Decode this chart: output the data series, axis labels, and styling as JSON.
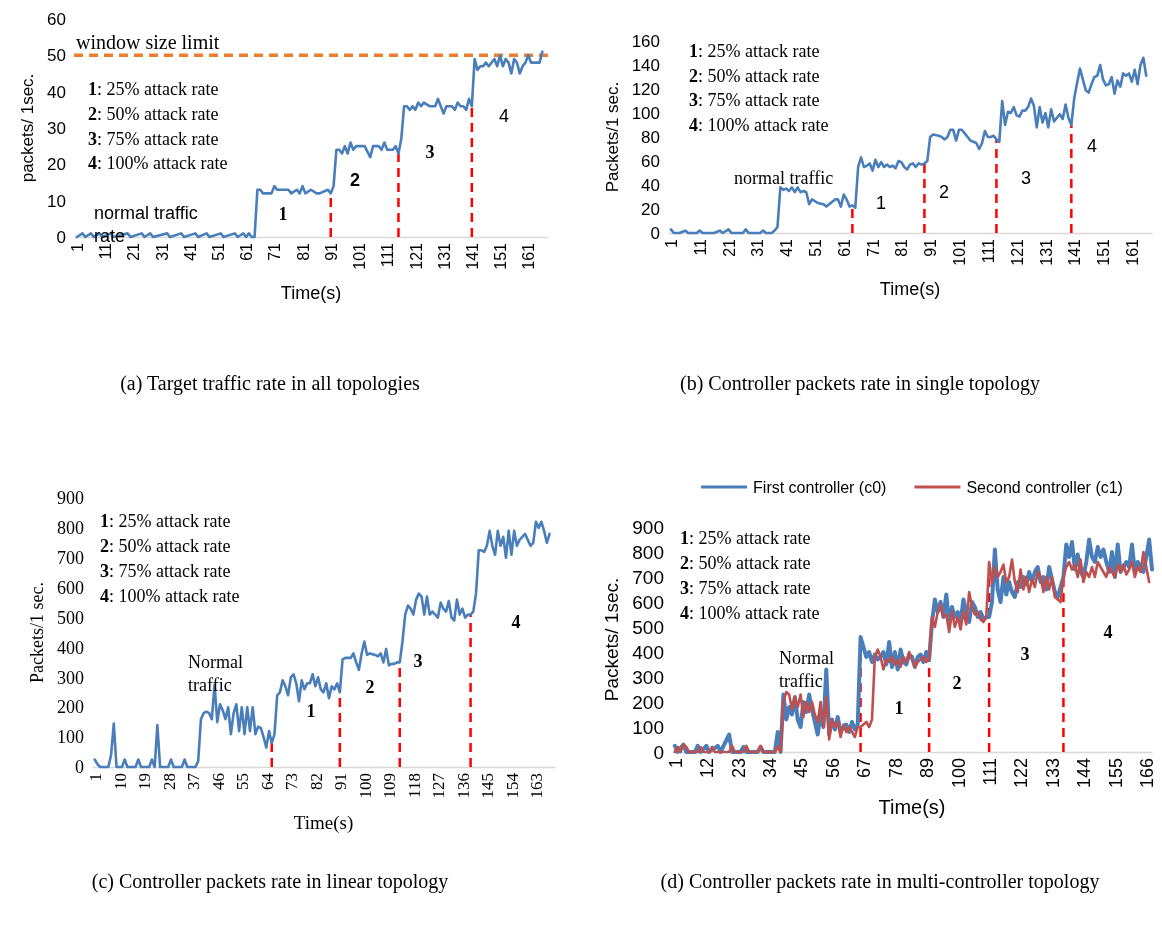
{
  "chart_data": [
    {
      "type": "line",
      "title": "(a) Target traffic rate in all topologies",
      "xlabel": "Time(s)",
      "ylabel": "packets/ 1sec.",
      "xlim": [
        0,
        168
      ],
      "xticks": [
        1,
        11,
        21,
        31,
        41,
        51,
        61,
        71,
        81,
        91,
        101,
        111,
        121,
        131,
        141,
        151,
        161
      ],
      "ylim": [
        0,
        60
      ],
      "yticks": [
        0,
        10,
        20,
        30,
        40,
        50,
        60
      ],
      "series": [
        {
          "color": "#4a7ebb",
          "x": [
            1,
            3,
            4,
            6,
            7,
            9,
            10,
            13,
            14,
            19,
            20,
            24,
            25,
            27,
            28,
            33,
            34,
            38,
            39,
            43,
            44,
            47,
            48,
            52,
            53,
            57,
            58,
            60,
            61,
            62,
            63,
            64,
            65,
            66,
            67,
            70,
            71,
            72,
            76,
            77,
            79,
            80,
            81,
            82,
            84,
            86,
            87,
            90,
            91,
            92,
            93,
            94,
            95,
            96,
            97,
            98,
            99,
            100,
            103,
            105,
            106,
            108,
            109,
            110,
            111,
            113,
            114,
            115,
            116,
            117,
            118,
            119,
            120,
            121,
            122,
            123,
            124,
            126,
            128,
            129,
            130,
            131,
            132,
            134,
            135,
            136,
            137,
            138,
            139,
            140,
            141,
            142,
            143,
            144,
            145,
            146,
            147,
            148,
            149,
            150,
            151,
            152,
            153,
            154,
            155,
            156,
            157,
            158,
            159,
            160,
            161,
            162,
            163,
            164,
            165,
            166
          ],
          "values": [
            0,
            1,
            0,
            1,
            0,
            1,
            0,
            1,
            0,
            1,
            0,
            1,
            0,
            1,
            0,
            1,
            0,
            1,
            0,
            1,
            0,
            1,
            0,
            1,
            0,
            1,
            0,
            1,
            0,
            1,
            0,
            0,
            13,
            13,
            12,
            12,
            14,
            13,
            13,
            12,
            13,
            12,
            14,
            12,
            13,
            12,
            12,
            13,
            12,
            14,
            24,
            24,
            23,
            25,
            23,
            26,
            24,
            25,
            25,
            22,
            25,
            25,
            24,
            26,
            24,
            24,
            25,
            23,
            27,
            36,
            36,
            35,
            36,
            35,
            37,
            36,
            37,
            36,
            36,
            38,
            36,
            34,
            36,
            36,
            35,
            37,
            36,
            36,
            35,
            38,
            36,
            49,
            46,
            47,
            47,
            48,
            47,
            48,
            49,
            47,
            50,
            47,
            49,
            48,
            45,
            49,
            48,
            45,
            47,
            48,
            50,
            48,
            48,
            48,
            48,
            51
          ]
        }
      ],
      "ref_lines": [
        {
          "axis": "y",
          "value": 50,
          "label": "window size limit",
          "color": "#ed7d31",
          "line_style": "dashed"
        },
        {
          "axis": "x",
          "value": 91,
          "color": "#ff0000",
          "line_style": "dashed"
        },
        {
          "axis": "x",
          "value": 115,
          "color": "#ff0000",
          "line_style": "dashed"
        },
        {
          "axis": "x",
          "value": 141,
          "color": "#ff0000",
          "line_style": "dashed"
        }
      ],
      "annotations": [
        "1: 25% attack rate",
        "2: 50% attack rate",
        "3: 75% attack rate",
        "4: 100% attack rate",
        "normal traffic rate",
        "1",
        "2",
        "3",
        "4"
      ]
    },
    {
      "type": "line",
      "title": "(b) Controller packets rate in single topology",
      "xlabel": "Time(s)",
      "ylabel": "Packets/1 sec.",
      "xlim": [
        0,
        168
      ],
      "xticks": [
        1,
        11,
        21,
        31,
        41,
        51,
        61,
        71,
        81,
        91,
        101,
        111,
        121,
        131,
        141,
        151,
        161
      ],
      "ylim": [
        0,
        160
      ],
      "yticks": [
        0,
        20,
        40,
        60,
        80,
        100,
        120,
        140,
        160
      ],
      "series": [
        {
          "color": "#4a7ebb",
          "x": [
            1,
            2,
            4,
            6,
            7,
            10,
            11,
            12,
            16,
            18,
            19,
            21,
            22,
            26,
            27,
            28,
            32,
            33,
            34,
            36,
            37,
            38,
            39,
            40,
            41,
            42,
            43,
            44,
            45,
            46,
            47,
            48,
            49,
            50,
            52,
            54,
            55,
            58,
            59,
            60,
            61,
            62,
            63,
            64,
            65,
            66,
            67,
            68,
            69,
            70,
            71,
            72,
            73,
            74,
            75,
            76,
            77,
            78,
            79,
            80,
            81,
            82,
            83,
            84,
            85,
            86,
            87,
            88,
            89,
            90,
            91,
            92,
            94,
            95,
            96,
            97,
            98,
            99,
            100,
            101,
            102,
            103,
            104,
            105,
            106,
            107,
            108,
            109,
            110,
            111,
            112,
            113,
            114,
            115,
            116,
            117,
            118,
            119,
            120,
            121,
            122,
            123,
            124,
            125,
            126,
            127,
            128,
            129,
            130,
            131,
            132,
            133,
            134,
            135,
            136,
            137,
            138,
            139,
            140,
            141,
            142,
            143,
            144,
            145,
            146,
            147,
            148,
            149,
            150,
            151,
            152,
            153,
            154,
            155,
            156,
            157,
            158,
            159,
            160,
            161,
            162,
            163,
            164,
            165,
            166
          ],
          "values": [
            3,
            0,
            0,
            2,
            0,
            0,
            2,
            0,
            0,
            2,
            0,
            3,
            0,
            0,
            3,
            0,
            0,
            2,
            0,
            0,
            2,
            5,
            38,
            36,
            37,
            35,
            38,
            34,
            38,
            34,
            35,
            34,
            24,
            28,
            25,
            24,
            22,
            28,
            28,
            22,
            32,
            28,
            22,
            23,
            21,
            55,
            63,
            55,
            56,
            58,
            52,
            61,
            55,
            59,
            55,
            57,
            55,
            56,
            54,
            60,
            59,
            55,
            53,
            57,
            58,
            55,
            58,
            57,
            58,
            60,
            80,
            82,
            81,
            80,
            78,
            80,
            86,
            86,
            77,
            86,
            86,
            83,
            80,
            77,
            76,
            75,
            70,
            75,
            85,
            80,
            80,
            81,
            78,
            76,
            110,
            90,
            101,
            100,
            105,
            98,
            97,
            102,
            102,
            105,
            112,
            106,
            88,
            105,
            92,
            100,
            88,
            103,
            93,
            96,
            99,
            95,
            107,
            96,
            90,
            112,
            125,
            137,
            128,
            119,
            117,
            124,
            130,
            131,
            140,
            128,
            123,
            124,
            130,
            116,
            127,
            122,
            133,
            131,
            133,
            126,
            136,
            124,
            140,
            146,
            131
          ]
        }
      ],
      "ref_lines": [
        {
          "axis": "x",
          "value": 64,
          "color": "#ff0000",
          "line_style": "dashed"
        },
        {
          "axis": "x",
          "value": 89,
          "color": "#ff0000",
          "line_style": "dashed"
        },
        {
          "axis": "x",
          "value": 114,
          "color": "#ff0000",
          "line_style": "dashed"
        },
        {
          "axis": "x",
          "value": 140,
          "color": "#ff0000",
          "line_style": "dashed"
        }
      ],
      "annotations": [
        "1: 25% attack rate",
        "2: 50% attack rate",
        "3: 75% attack rate",
        "4: 100% attack rate",
        "normal traffic",
        "1",
        "2",
        "3",
        "4"
      ]
    },
    {
      "type": "line",
      "title": "(c) Controller packets rate in linear topology",
      "xlabel": "Time(s)",
      "ylabel": "Packets/1 sec.",
      "xlim": [
        0,
        170
      ],
      "xticks": [
        1,
        10,
        19,
        28,
        37,
        46,
        55,
        64,
        73,
        82,
        91,
        100,
        109,
        118,
        127,
        136,
        145,
        154,
        163
      ],
      "ylim": [
        0,
        900
      ],
      "yticks": [
        0,
        100,
        200,
        300,
        400,
        500,
        600,
        700,
        800,
        900
      ],
      "series": [
        {
          "color": "#4a7ebb",
          "x": [
            1,
            2,
            3,
            6,
            7,
            8,
            9,
            11,
            12,
            13,
            16,
            17,
            18,
            21,
            22,
            23,
            24,
            25,
            28,
            29,
            30,
            33,
            34,
            35,
            38,
            39,
            40,
            41,
            42,
            43,
            44,
            45,
            46,
            47,
            48,
            49,
            50,
            51,
            52,
            53,
            54,
            55,
            56,
            57,
            58,
            59,
            60,
            61,
            62,
            63,
            64,
            65,
            66,
            67,
            68,
            69,
            70,
            71,
            72,
            73,
            74,
            75,
            76,
            77,
            78,
            79,
            80,
            81,
            82,
            83,
            84,
            85,
            86,
            87,
            88,
            89,
            90,
            91,
            92,
            93,
            95,
            96,
            97,
            98,
            99,
            100,
            101,
            102,
            104,
            105,
            106,
            107,
            108,
            109,
            110,
            111,
            112,
            113,
            114,
            115,
            116,
            117,
            118,
            119,
            120,
            121,
            122,
            123,
            124,
            125,
            126,
            127,
            128,
            129,
            130,
            131,
            132,
            133,
            134,
            135,
            136,
            137,
            138,
            139,
            140,
            141,
            142,
            143,
            144,
            145,
            146,
            147,
            148,
            149,
            150,
            151,
            152,
            153,
            154,
            155,
            156,
            157,
            158,
            159,
            160,
            161,
            162,
            163,
            164,
            165,
            166,
            167,
            168
          ],
          "values": [
            25,
            10,
            0,
            0,
            40,
            145,
            0,
            0,
            25,
            0,
            0,
            25,
            0,
            0,
            25,
            0,
            140,
            0,
            0,
            25,
            0,
            0,
            25,
            0,
            0,
            20,
            160,
            180,
            185,
            180,
            160,
            275,
            150,
            210,
            190,
            160,
            200,
            110,
            180,
            210,
            120,
            200,
            110,
            200,
            120,
            200,
            110,
            135,
            130,
            100,
            65,
            120,
            80,
            110,
            240,
            250,
            290,
            270,
            240,
            300,
            310,
            280,
            220,
            290,
            260,
            280,
            280,
            310,
            270,
            300,
            260,
            250,
            280,
            230,
            270,
            260,
            280,
            250,
            360,
            365,
            365,
            380,
            350,
            325,
            380,
            420,
            375,
            380,
            375,
            370,
            380,
            350,
            395,
            340,
            345,
            345,
            350,
            350,
            420,
            510,
            540,
            530,
            510,
            560,
            580,
            570,
            510,
            570,
            510,
            520,
            510,
            500,
            550,
            530,
            520,
            555,
            500,
            490,
            560,
            510,
            530,
            500,
            510,
            510,
            520,
            580,
            725,
            725,
            720,
            740,
            790,
            740,
            710,
            790,
            740,
            770,
            700,
            790,
            710,
            790,
            740,
            760,
            770,
            780,
            760,
            740,
            750,
            820,
            800,
            820,
            790,
            750,
            780
          ]
        }
      ],
      "ref_lines": [
        {
          "axis": "x",
          "value": 66,
          "color": "#ff0000",
          "line_style": "dashed"
        },
        {
          "axis": "x",
          "value": 91,
          "color": "#ff0000",
          "line_style": "dashed"
        },
        {
          "axis": "x",
          "value": 113,
          "color": "#ff0000",
          "line_style": "dashed"
        },
        {
          "axis": "x",
          "value": 139,
          "color": "#ff0000",
          "line_style": "dashed"
        }
      ],
      "annotations": [
        "1: 25% attack rate",
        "2: 50% attack rate",
        "3: 75% attack rate",
        "4: 100% attack rate",
        "Normal traffic",
        "1",
        "2",
        "3",
        "4"
      ]
    },
    {
      "type": "line",
      "title": "(d) Controller packets rate in multi-controller topology",
      "xlabel": "Time(s)",
      "ylabel": "Packets/ 1sec.",
      "xlim": [
        0,
        168
      ],
      "xticks": [
        1,
        12,
        23,
        34,
        45,
        56,
        67,
        78,
        89,
        100,
        111,
        122,
        133,
        144,
        155,
        166
      ],
      "ylim": [
        0,
        900
      ],
      "yticks": [
        0,
        100,
        200,
        300,
        400,
        500,
        600,
        700,
        800,
        900
      ],
      "legend": "top",
      "series": [
        {
          "name": "First controller (c0)",
          "color": "#4a7ebb",
          "x": [
            1,
            2,
            4,
            5,
            8,
            9,
            10,
            12,
            13,
            16,
            17,
            20,
            21,
            24,
            25,
            26,
            30,
            31,
            32,
            36,
            37,
            38,
            39,
            40,
            41,
            42,
            43,
            44,
            45,
            46,
            47,
            48,
            49,
            50,
            51,
            52,
            53,
            54,
            55,
            56,
            57,
            58,
            59,
            60,
            61,
            62,
            63,
            64,
            65,
            66,
            67,
            68,
            69,
            70,
            71,
            72,
            73,
            74,
            75,
            76,
            77,
            78,
            79,
            80,
            81,
            82,
            83,
            84,
            85,
            86,
            87,
            88,
            89,
            90,
            91,
            92,
            93,
            94,
            95,
            96,
            97,
            98,
            99,
            100,
            101,
            102,
            103,
            104,
            105,
            106,
            107,
            108,
            109,
            110,
            111,
            112,
            113,
            114,
            115,
            116,
            117,
            118,
            119,
            120,
            121,
            122,
            123,
            124,
            125,
            126,
            127,
            128,
            129,
            130,
            131,
            132,
            133,
            134,
            135,
            136,
            137,
            138,
            139,
            140,
            141,
            142,
            143,
            144,
            145,
            146,
            147,
            148,
            149,
            150,
            151,
            152,
            153,
            154,
            155,
            156,
            157,
            158,
            159,
            160,
            161,
            162,
            163,
            164,
            165,
            166,
            167,
            168
          ],
          "values": [
            25,
            0,
            30,
            0,
            0,
            25,
            0,
            25,
            0,
            25,
            0,
            70,
            0,
            0,
            20,
            0,
            0,
            20,
            0,
            0,
            80,
            0,
            230,
            130,
            180,
            150,
            220,
            130,
            100,
            200,
            160,
            230,
            170,
            120,
            70,
            150,
            100,
            330,
            70,
            130,
            90,
            140,
            80,
            100,
            110,
            80,
            120,
            90,
            110,
            460,
            420,
            380,
            400,
            360,
            390,
            370,
            380,
            400,
            350,
            440,
            340,
            400,
            330,
            410,
            360,
            350,
            390,
            380,
            340,
            380,
            390,
            360,
            400,
            370,
            520,
            610,
            560,
            600,
            540,
            630,
            520,
            580,
            540,
            560,
            520,
            610,
            560,
            520,
            600,
            580,
            540,
            560,
            530,
            540,
            540,
            600,
            810,
            650,
            600,
            700,
            630,
            680,
            640,
            620,
            680,
            660,
            700,
            670,
            720,
            680,
            720,
            740,
            680,
            700,
            650,
            740,
            690,
            640,
            620,
            660,
            700,
            830,
            780,
            840,
            730,
            790,
            720,
            700,
            760,
            850,
            780,
            760,
            820,
            780,
            810,
            760,
            720,
            800,
            700,
            830,
            720,
            740,
            760,
            740,
            830,
            720,
            760,
            740,
            720,
            780,
            850,
            730
          ]
        },
        {
          "name": "Second controller (c1)",
          "color": "#c0504d",
          "x": [
            1,
            2,
            3,
            4,
            5,
            6,
            9,
            10,
            11,
            13,
            14,
            15,
            20,
            21,
            22,
            25,
            26,
            27,
            30,
            31,
            32,
            36,
            37,
            38,
            39,
            40,
            41,
            42,
            43,
            44,
            45,
            46,
            47,
            48,
            49,
            50,
            51,
            52,
            53,
            54,
            55,
            56,
            57,
            58,
            59,
            60,
            61,
            62,
            63,
            64,
            65,
            66,
            67,
            68,
            69,
            70,
            71,
            72,
            73,
            74,
            75,
            76,
            77,
            78,
            79,
            80,
            81,
            82,
            83,
            84,
            85,
            86,
            87,
            88,
            89,
            90,
            91,
            92,
            93,
            94,
            95,
            96,
            97,
            98,
            99,
            100,
            101,
            102,
            103,
            104,
            105,
            106,
            107,
            108,
            109,
            110,
            111,
            112,
            113,
            114,
            115,
            116,
            117,
            118,
            119,
            120,
            121,
            122,
            123,
            124,
            125,
            126,
            127,
            128,
            129,
            130,
            131,
            132,
            133,
            134,
            135,
            136,
            137,
            138,
            139,
            140,
            141,
            142,
            143,
            144,
            145,
            146,
            147,
            148,
            149,
            150,
            151,
            152,
            153,
            154,
            155,
            156,
            157,
            158,
            159,
            160,
            161,
            162,
            163,
            164,
            165,
            166,
            167
          ],
          "values": [
            0,
            20,
            0,
            30,
            20,
            0,
            0,
            20,
            0,
            0,
            20,
            0,
            0,
            25,
            0,
            0,
            25,
            0,
            0,
            25,
            0,
            0,
            20,
            0,
            200,
            240,
            230,
            170,
            220,
            180,
            230,
            140,
            200,
            160,
            200,
            150,
            120,
            200,
            100,
            220,
            50,
            130,
            100,
            120,
            60,
            110,
            80,
            100,
            80,
            60,
            100,
            100,
            110,
            120,
            100,
            130,
            380,
            410,
            380,
            330,
            370,
            360,
            380,
            350,
            370,
            340,
            380,
            360,
            400,
            370,
            340,
            360,
            370,
            380,
            360,
            380,
            540,
            500,
            560,
            590,
            540,
            550,
            480,
            560,
            500,
            540,
            490,
            560,
            510,
            640,
            580,
            550,
            560,
            530,
            520,
            540,
            760,
            680,
            740,
            700,
            720,
            750,
            680,
            700,
            770,
            680,
            640,
            730,
            650,
            700,
            640,
            690,
            660,
            720,
            700,
            640,
            700,
            650,
            700,
            620,
            610,
            600,
            700,
            740,
            760,
            730,
            750,
            700,
            770,
            680,
            720,
            700,
            740,
            700,
            760,
            740,
            720,
            700,
            740,
            720,
            700,
            750,
            720,
            750,
            710,
            730,
            760,
            700,
            740,
            720,
            800,
            740,
            680
          ]
        }
      ],
      "ref_lines": [
        {
          "axis": "x",
          "value": 66,
          "color": "#ff0000",
          "line_style": "dashed"
        },
        {
          "axis": "x",
          "value": 90,
          "color": "#ff0000",
          "line_style": "dashed"
        },
        {
          "axis": "x",
          "value": 111,
          "color": "#ff0000",
          "line_style": "dashed"
        },
        {
          "axis": "x",
          "value": 137,
          "color": "#ff0000",
          "line_style": "dashed"
        }
      ],
      "annotations": [
        "1: 25% attack rate",
        "2: 50% attack rate",
        "3: 75% attack rate",
        "4: 100% attack rate",
        "Normal traffic",
        "1",
        "2",
        "3",
        "4"
      ]
    }
  ]
}
